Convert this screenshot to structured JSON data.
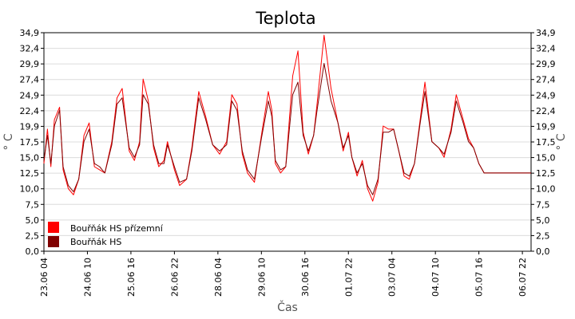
{
  "chart_data": {
    "type": "line",
    "title": "Teplota",
    "xlabel": "Čas",
    "ylabel": "° C",
    "ylim": [
      0,
      34.9
    ],
    "yticks": [
      "0,0",
      "2,5",
      "5,0",
      "7,5",
      "10,0",
      "12,5",
      "15,0",
      "17,5",
      "19,9",
      "22,4",
      "24,9",
      "27,4",
      "29,9",
      "32,4",
      "34,9"
    ],
    "xlim": [
      0,
      14
    ],
    "xticks": [
      {
        "x": 0.0,
        "label": "23.06 04"
      },
      {
        "x": 1.25,
        "label": "24.06 10"
      },
      {
        "x": 2.5,
        "label": "25.06 16"
      },
      {
        "x": 3.75,
        "label": "26.06 22"
      },
      {
        "x": 5.0,
        "label": "28.06 04"
      },
      {
        "x": 6.25,
        "label": "29.06 10"
      },
      {
        "x": 7.5,
        "label": "30.06 16"
      },
      {
        "x": 8.75,
        "label": "01.07 22"
      },
      {
        "x": 10.0,
        "label": "03.07 04"
      },
      {
        "x": 11.25,
        "label": "04.07 10"
      },
      {
        "x": 12.5,
        "label": "05.07 16"
      },
      {
        "x": 13.75,
        "label": "06.07 22"
      }
    ],
    "grid": true,
    "legend": "bottom-left",
    "series": [
      {
        "name": "Bouřňák HS přízemní",
        "color": "#ff0000",
        "x": [
          0,
          0.1,
          0.2,
          0.3,
          0.45,
          0.55,
          0.7,
          0.85,
          1.0,
          1.15,
          1.3,
          1.45,
          1.6,
          1.75,
          1.95,
          2.1,
          2.25,
          2.45,
          2.6,
          2.75,
          2.85,
          3.0,
          3.15,
          3.3,
          3.45,
          3.55,
          3.75,
          3.9,
          4.1,
          4.25,
          4.45,
          4.65,
          4.85,
          5.05,
          5.25,
          5.4,
          5.55,
          5.7,
          5.85,
          6.05,
          6.25,
          6.45,
          6.55,
          6.65,
          6.8,
          6.95,
          7.15,
          7.3,
          7.45,
          7.6,
          7.75,
          7.85,
          8.05,
          8.25,
          8.45,
          8.6,
          8.75,
          8.85,
          9.0,
          9.15,
          9.3,
          9.45,
          9.6,
          9.75,
          9.9,
          10.05,
          10.2,
          10.35,
          10.5,
          10.65,
          10.8,
          10.95,
          11.15,
          11.35,
          11.5,
          11.7,
          11.85,
          12.05,
          12.2,
          12.35,
          12.5,
          12.65,
          12.8,
          12.95,
          13.1,
          13.25,
          13.4,
          13.55,
          13.7,
          13.85,
          13.95,
          14.0
        ],
        "y": [
          14.0,
          19.5,
          13.5,
          21.0,
          23.0,
          13.0,
          10.0,
          9.0,
          11.5,
          18.5,
          20.5,
          13.5,
          13.0,
          12.5,
          17.5,
          24.5,
          26.0,
          16.0,
          14.5,
          17.5,
          27.5,
          24.0,
          16.5,
          13.5,
          14.5,
          17.5,
          13.0,
          10.5,
          11.5,
          16.5,
          25.5,
          21.5,
          17.0,
          15.5,
          17.5,
          25.0,
          23.5,
          15.5,
          12.5,
          11.0,
          18.5,
          25.5,
          22.5,
          14.0,
          12.5,
          13.5,
          28.0,
          32.0,
          19.0,
          15.5,
          18.5,
          23.5,
          34.5,
          26.0,
          20.5,
          16.0,
          19.0,
          15.0,
          12.0,
          14.5,
          10.0,
          8.0,
          11.0,
          20.0,
          19.5,
          19.5,
          16.0,
          12.0,
          11.5,
          14.0,
          20.5,
          27.0,
          17.5,
          16.5,
          15.0,
          19.5,
          25.0,
          21.0,
          18.0,
          16.5,
          14.0,
          12.5,
          12.5,
          12.5,
          12.5,
          12.5,
          12.5,
          12.5,
          12.5,
          12.5,
          12.5,
          12.5
        ]
      },
      {
        "name": "Bouřňák HS",
        "color": "#800000",
        "x": [
          0,
          0.1,
          0.2,
          0.3,
          0.45,
          0.55,
          0.7,
          0.85,
          1.0,
          1.15,
          1.3,
          1.45,
          1.6,
          1.75,
          1.95,
          2.1,
          2.25,
          2.45,
          2.6,
          2.75,
          2.85,
          3.0,
          3.15,
          3.3,
          3.45,
          3.55,
          3.75,
          3.9,
          4.1,
          4.25,
          4.45,
          4.65,
          4.85,
          5.05,
          5.25,
          5.4,
          5.55,
          5.7,
          5.85,
          6.05,
          6.25,
          6.45,
          6.55,
          6.65,
          6.8,
          6.95,
          7.15,
          7.3,
          7.45,
          7.6,
          7.75,
          7.85,
          8.05,
          8.25,
          8.45,
          8.6,
          8.75,
          8.85,
          9.0,
          9.15,
          9.3,
          9.45,
          9.6,
          9.75,
          9.9,
          10.05,
          10.2,
          10.35,
          10.5,
          10.65,
          10.8,
          10.95,
          11.15,
          11.35,
          11.5,
          11.7,
          11.85,
          12.05,
          12.2,
          12.35,
          12.5,
          12.65,
          12.8,
          12.95,
          13.1,
          13.25,
          13.4,
          13.55,
          13.7,
          13.85,
          13.95,
          14.0
        ],
        "y": [
          14.5,
          18.5,
          14.0,
          20.0,
          22.5,
          13.5,
          10.5,
          9.5,
          11.5,
          17.5,
          19.5,
          14.0,
          13.5,
          12.5,
          17.0,
          23.5,
          24.5,
          16.5,
          15.0,
          17.0,
          25.0,
          23.5,
          17.0,
          14.0,
          14.0,
          17.0,
          13.5,
          11.0,
          11.5,
          16.0,
          24.5,
          21.0,
          17.0,
          16.0,
          17.0,
          24.0,
          22.5,
          16.0,
          13.0,
          11.5,
          18.0,
          24.0,
          21.5,
          14.5,
          13.0,
          13.5,
          25.0,
          27.0,
          18.5,
          16.0,
          18.5,
          22.5,
          30.0,
          24.0,
          20.5,
          16.5,
          18.5,
          15.0,
          12.5,
          14.0,
          10.5,
          9.0,
          11.5,
          19.0,
          19.0,
          19.5,
          16.0,
          12.5,
          12.0,
          14.0,
          20.0,
          25.5,
          17.5,
          16.5,
          15.5,
          19.0,
          24.0,
          20.5,
          17.5,
          16.5,
          14.0,
          12.5,
          12.5,
          12.5,
          12.5,
          12.5,
          12.5,
          12.5,
          12.5,
          12.5,
          12.5,
          12.5
        ]
      }
    ]
  }
}
